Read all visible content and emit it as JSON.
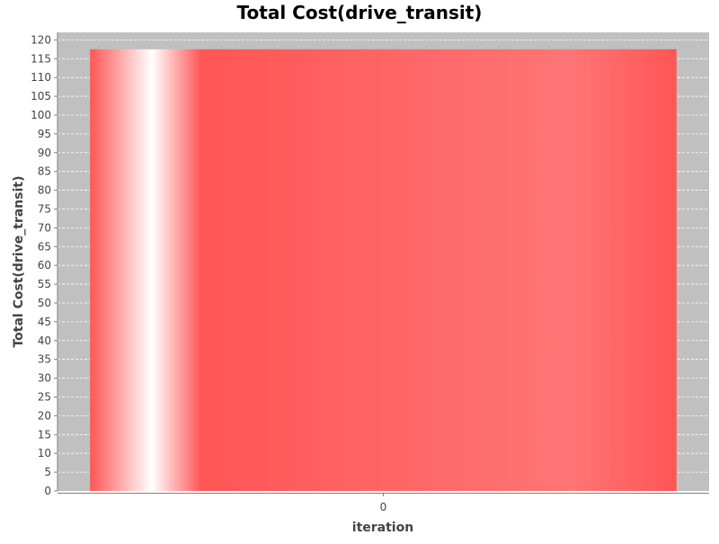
{
  "chart_data": {
    "type": "bar",
    "title": "Total Cost(drive_transit)",
    "xlabel": "iteration",
    "ylabel": "Total Cost(drive_transit)",
    "categories": [
      "0"
    ],
    "values": [
      117.5
    ],
    "ylim": [
      0,
      122
    ],
    "yticks": [
      0,
      5,
      10,
      15,
      20,
      25,
      30,
      35,
      40,
      45,
      50,
      55,
      60,
      65,
      70,
      75,
      80,
      85,
      90,
      95,
      100,
      105,
      110,
      115,
      120
    ],
    "grid": true,
    "legend": "none",
    "colors": {
      "bar": "#ff5555",
      "bar_highlight": "#ffffff",
      "plot_background": "#c0c0c0",
      "gridline": "#ffffff",
      "axis_text": "#444444",
      "title_text": "#000000"
    }
  }
}
